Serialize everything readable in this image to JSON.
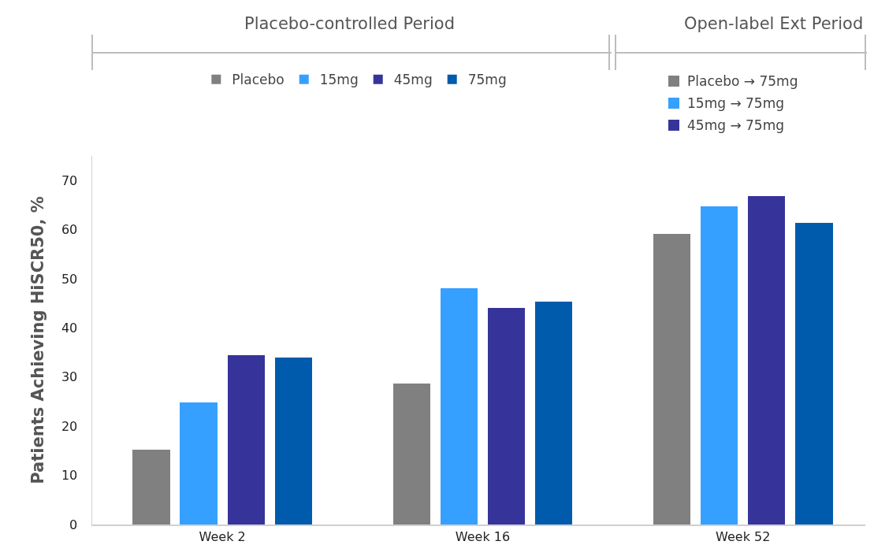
{
  "chart_data": {
    "type": "bar",
    "annotations": [
      "Placebo-controlled Period",
      "Open-label Ext Period"
    ],
    "ylabel": "Patients Achieving HiSCR50, %",
    "categories": [
      "Week 2",
      "Week 16",
      "Week 52"
    ],
    "series": [
      {
        "name": "Placebo",
        "color": "#808080",
        "values": [
          15.2,
          28.7,
          null
        ]
      },
      {
        "name": "15mg",
        "color": "#35a0ff",
        "values": [
          24.9,
          48.0,
          null
        ]
      },
      {
        "name": "45mg",
        "color": "#36349a",
        "values": [
          34.5,
          44.1,
          null
        ]
      },
      {
        "name": "75mg",
        "color": "#005bac",
        "values": [
          33.9,
          45.3,
          61.3
        ]
      },
      {
        "name": "Placebo → 75mg",
        "color": "#808080",
        "values": [
          null,
          null,
          59.2
        ]
      },
      {
        "name": "15mg → 75mg",
        "color": "#35a0ff",
        "values": [
          null,
          null,
          64.7
        ]
      },
      {
        "name": "45mg → 75mg",
        "color": "#36349a",
        "values": [
          null,
          null,
          66.8
        ]
      }
    ],
    "ylim": [
      0,
      75
    ],
    "yticks": [
      0,
      10,
      20,
      30,
      40,
      50,
      60,
      70
    ],
    "grid": false,
    "legend": "top"
  }
}
